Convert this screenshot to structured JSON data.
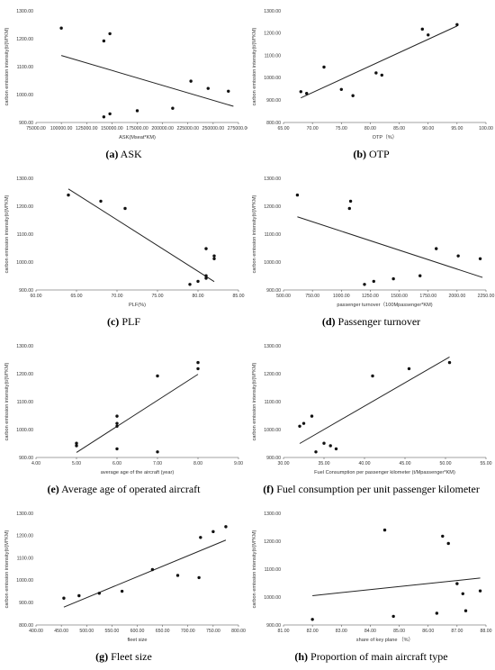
{
  "chart_data": [
    {
      "type": "scatter",
      "panel_letter": "(a)",
      "caption": "ASK",
      "xlabel": "ASK(Mseat*KM)",
      "ylabel": "carbon emission intensity(t/(M*KM)",
      "xlim": [
        75000,
        275000
      ],
      "ylim": [
        900,
        1300
      ],
      "xticks": [
        75000,
        100000,
        125000,
        150000,
        175000,
        200000,
        225000,
        250000,
        275000
      ],
      "yticks": [
        900,
        1000,
        1100,
        1200,
        1300
      ],
      "xtick_labels": [
        "75000.00",
        "100000.00",
        "125000.00",
        "150000.00",
        "175000.00",
        "200000.00",
        "225000.00",
        "250000.00",
        "275000.00"
      ],
      "ytick_labels": [
        "900.00",
        "1000.00",
        "1100.00",
        "1200.00",
        "1300.00"
      ],
      "points": [
        [
          100000,
          1238
        ],
        [
          142000,
          1192
        ],
        [
          148000,
          1218
        ],
        [
          142000,
          920
        ],
        [
          148000,
          931
        ],
        [
          175000,
          942
        ],
        [
          210000,
          951
        ],
        [
          228000,
          1048
        ],
        [
          245000,
          1022
        ],
        [
          265000,
          1012
        ]
      ],
      "trendline": [
        [
          100000,
          1140
        ],
        [
          270000,
          958
        ]
      ]
    },
    {
      "type": "scatter",
      "panel_letter": "(b)",
      "caption": "OTP",
      "xlabel": "OTP（%）",
      "ylabel": "carbon emission intensity(t/(M*KM)",
      "xlim": [
        65,
        100
      ],
      "ylim": [
        800,
        1300
      ],
      "xticks": [
        65,
        70,
        75,
        80,
        85,
        90,
        95,
        100
      ],
      "yticks": [
        800,
        900,
        1000,
        1100,
        1200,
        1300
      ],
      "xtick_labels": [
        "65.00",
        "70.00",
        "75.00",
        "80.00",
        "85.00",
        "90.00",
        "95.00",
        "100.00"
      ],
      "ytick_labels": [
        "800.00",
        "900.00",
        "1000.00",
        "1100.00",
        "1200.00",
        "1300.00"
      ],
      "points": [
        [
          68,
          938
        ],
        [
          69,
          930
        ],
        [
          72,
          1048
        ],
        [
          75,
          948
        ],
        [
          77,
          920
        ],
        [
          81,
          1022
        ],
        [
          82,
          1012
        ],
        [
          89,
          1218
        ],
        [
          90,
          1192
        ],
        [
          95,
          1238
        ]
      ],
      "trendline": [
        [
          68,
          910
        ],
        [
          95,
          1232
        ]
      ]
    },
    {
      "type": "scatter",
      "panel_letter": "(c)",
      "caption": "PLF",
      "xlabel": "PLF(%)",
      "ylabel": "carbon emission intensity(t/(M*KM)",
      "xlim": [
        60,
        85
      ],
      "ylim": [
        900,
        1300
      ],
      "xticks": [
        60,
        65,
        70,
        75,
        80,
        85
      ],
      "yticks": [
        900,
        1000,
        1100,
        1200,
        1300
      ],
      "xtick_labels": [
        "60.00",
        "65.00",
        "70.00",
        "75.00",
        "80.00",
        "85.00"
      ],
      "ytick_labels": [
        "900.00",
        "1000.00",
        "1100.00",
        "1200.00",
        "1300.00"
      ],
      "points": [
        [
          64,
          1240
        ],
        [
          68,
          1218
        ],
        [
          71,
          1192
        ],
        [
          79,
          920
        ],
        [
          80,
          931
        ],
        [
          81,
          942
        ],
        [
          81,
          951
        ],
        [
          81,
          1048
        ],
        [
          82,
          1022
        ],
        [
          82,
          1012
        ]
      ],
      "trendline": [
        [
          64,
          1262
        ],
        [
          82,
          930
        ]
      ]
    },
    {
      "type": "scatter",
      "panel_letter": "(d)",
      "caption": "Passenger turnover",
      "xlabel": "passenger turnover（100Mpassenger*KM)",
      "ylabel": "carbon emission intensity(t/(M*KM)",
      "xlim": [
        500,
        2250
      ],
      "ylim": [
        900,
        1300
      ],
      "xticks": [
        500,
        750,
        1000,
        1250,
        1500,
        1750,
        2000,
        2250
      ],
      "yticks": [
        900,
        1000,
        1100,
        1200,
        1300
      ],
      "xtick_labels": [
        "500.00",
        "750.00",
        "1000.00",
        "1250.00",
        "1500.00",
        "1750.00",
        "2000.00",
        "2250.00"
      ],
      "ytick_labels": [
        "900.00",
        "1000.00",
        "1100.00",
        "1200.00",
        "1300.00"
      ],
      "points": [
        [
          620,
          1240
        ],
        [
          1080,
          1218
        ],
        [
          1070,
          1192
        ],
        [
          1200,
          920
        ],
        [
          1280,
          931
        ],
        [
          1450,
          940
        ],
        [
          1680,
          951
        ],
        [
          1820,
          1048
        ],
        [
          2010,
          1022
        ],
        [
          2200,
          1012
        ]
      ],
      "trendline": [
        [
          620,
          1162
        ],
        [
          2220,
          945
        ]
      ]
    },
    {
      "type": "scatter",
      "panel_letter": "(e)",
      "caption": "Average age of operated aircraft",
      "xlabel": "average age of the aircraft (year)",
      "ylabel": "carbon emission intensity(t/(M*KM)",
      "xlim": [
        4,
        9
      ],
      "ylim": [
        900,
        1300
      ],
      "xticks": [
        4,
        5,
        6,
        7,
        8,
        9
      ],
      "yticks": [
        900,
        1000,
        1100,
        1200,
        1300
      ],
      "xtick_labels": [
        "4.00",
        "5.00",
        "6.00",
        "7.00",
        "8.00",
        "9.00"
      ],
      "ytick_labels": [
        "900.00",
        "1000.00",
        "1100.00",
        "1200.00",
        "1300.00"
      ],
      "points": [
        [
          5,
          942
        ],
        [
          5,
          951
        ],
        [
          6,
          931
        ],
        [
          6,
          1012
        ],
        [
          6,
          1022
        ],
        [
          6,
          1048
        ],
        [
          7,
          920
        ],
        [
          7,
          1192
        ],
        [
          8,
          1218
        ],
        [
          8,
          1240
        ]
      ],
      "trendline": [
        [
          5,
          918
        ],
        [
          8,
          1198
        ]
      ]
    },
    {
      "type": "scatter",
      "panel_letter": "(f)",
      "caption": "Fuel consumption per unit passenger kilometer",
      "xlabel": "Fuel Consumption per passenger kilometer   (t/Mpassenger*KM)",
      "ylabel": "carbon emission intensity(t/(M*KM)",
      "xlim": [
        30,
        55
      ],
      "ylim": [
        900,
        1300
      ],
      "xticks": [
        30,
        35,
        40,
        45,
        50,
        55
      ],
      "yticks": [
        900,
        1000,
        1100,
        1200,
        1300
      ],
      "xtick_labels": [
        "30.00",
        "35.00",
        "40.00",
        "45.00",
        "50.00",
        "55.00"
      ],
      "ytick_labels": [
        "900.00",
        "1000.00",
        "1100.00",
        "1200.00",
        "1300.00"
      ],
      "points": [
        [
          32,
          1012
        ],
        [
          32.5,
          1022
        ],
        [
          33.5,
          1048
        ],
        [
          34,
          920
        ],
        [
          35,
          951
        ],
        [
          35.8,
          942
        ],
        [
          36.5,
          931
        ],
        [
          41,
          1192
        ],
        [
          45.5,
          1218
        ],
        [
          50.5,
          1240
        ]
      ],
      "trendline": [
        [
          32,
          950
        ],
        [
          50.5,
          1260
        ]
      ]
    },
    {
      "type": "scatter",
      "panel_letter": "(g)",
      "caption": "Fleet size",
      "xlabel": "fleet size",
      "ylabel": "carbon emission intensity(t/(M*KM)",
      "xlim": [
        400,
        800
      ],
      "ylim": [
        800,
        1300
      ],
      "xticks": [
        400,
        450,
        500,
        550,
        600,
        650,
        700,
        750,
        800
      ],
      "yticks": [
        800,
        900,
        1000,
        1100,
        1200,
        1300
      ],
      "xtick_labels": [
        "400.00",
        "450.00",
        "500.00",
        "550.00",
        "600.00",
        "650.00",
        "700.00",
        "750.00",
        "800.00"
      ],
      "ytick_labels": [
        "800.00",
        "900.00",
        "1000.00",
        "1100.00",
        "1200.00",
        "1300.00"
      ],
      "points": [
        [
          455,
          920
        ],
        [
          485,
          931
        ],
        [
          525,
          942
        ],
        [
          570,
          951
        ],
        [
          630,
          1048
        ],
        [
          680,
          1022
        ],
        [
          722,
          1012
        ],
        [
          725,
          1192
        ],
        [
          750,
          1218
        ],
        [
          775,
          1240
        ]
      ],
      "trendline": [
        [
          455,
          880
        ],
        [
          775,
          1180
        ]
      ]
    },
    {
      "type": "scatter",
      "panel_letter": "(h)",
      "caption": "Proportion of main aircraft type",
      "xlabel": "share of key plane （%）",
      "ylabel": "carbon emission intensity(t/(M*KM)",
      "xlim": [
        81,
        88
      ],
      "ylim": [
        900,
        1300
      ],
      "xticks": [
        81,
        82,
        83,
        84,
        85,
        86,
        87,
        88
      ],
      "yticks": [
        900,
        1000,
        1100,
        1200,
        1300
      ],
      "xtick_labels": [
        "81.00",
        "82.00",
        "83.00",
        "84.00",
        "85.00",
        "86.00",
        "87.00",
        "88.00"
      ],
      "ytick_labels": [
        "900.00",
        "1000.00",
        "1100.00",
        "1200.00",
        "1300.00"
      ],
      "points": [
        [
          82,
          920
        ],
        [
          84.5,
          1240
        ],
        [
          84.8,
          931
        ],
        [
          86.3,
          942
        ],
        [
          86.5,
          1218
        ],
        [
          86.7,
          1192
        ],
        [
          87,
          1048
        ],
        [
          87.2,
          1012
        ],
        [
          87.3,
          951
        ],
        [
          87.8,
          1022
        ]
      ],
      "trendline": [
        [
          82,
          1005
        ],
        [
          87.8,
          1068
        ]
      ]
    }
  ]
}
